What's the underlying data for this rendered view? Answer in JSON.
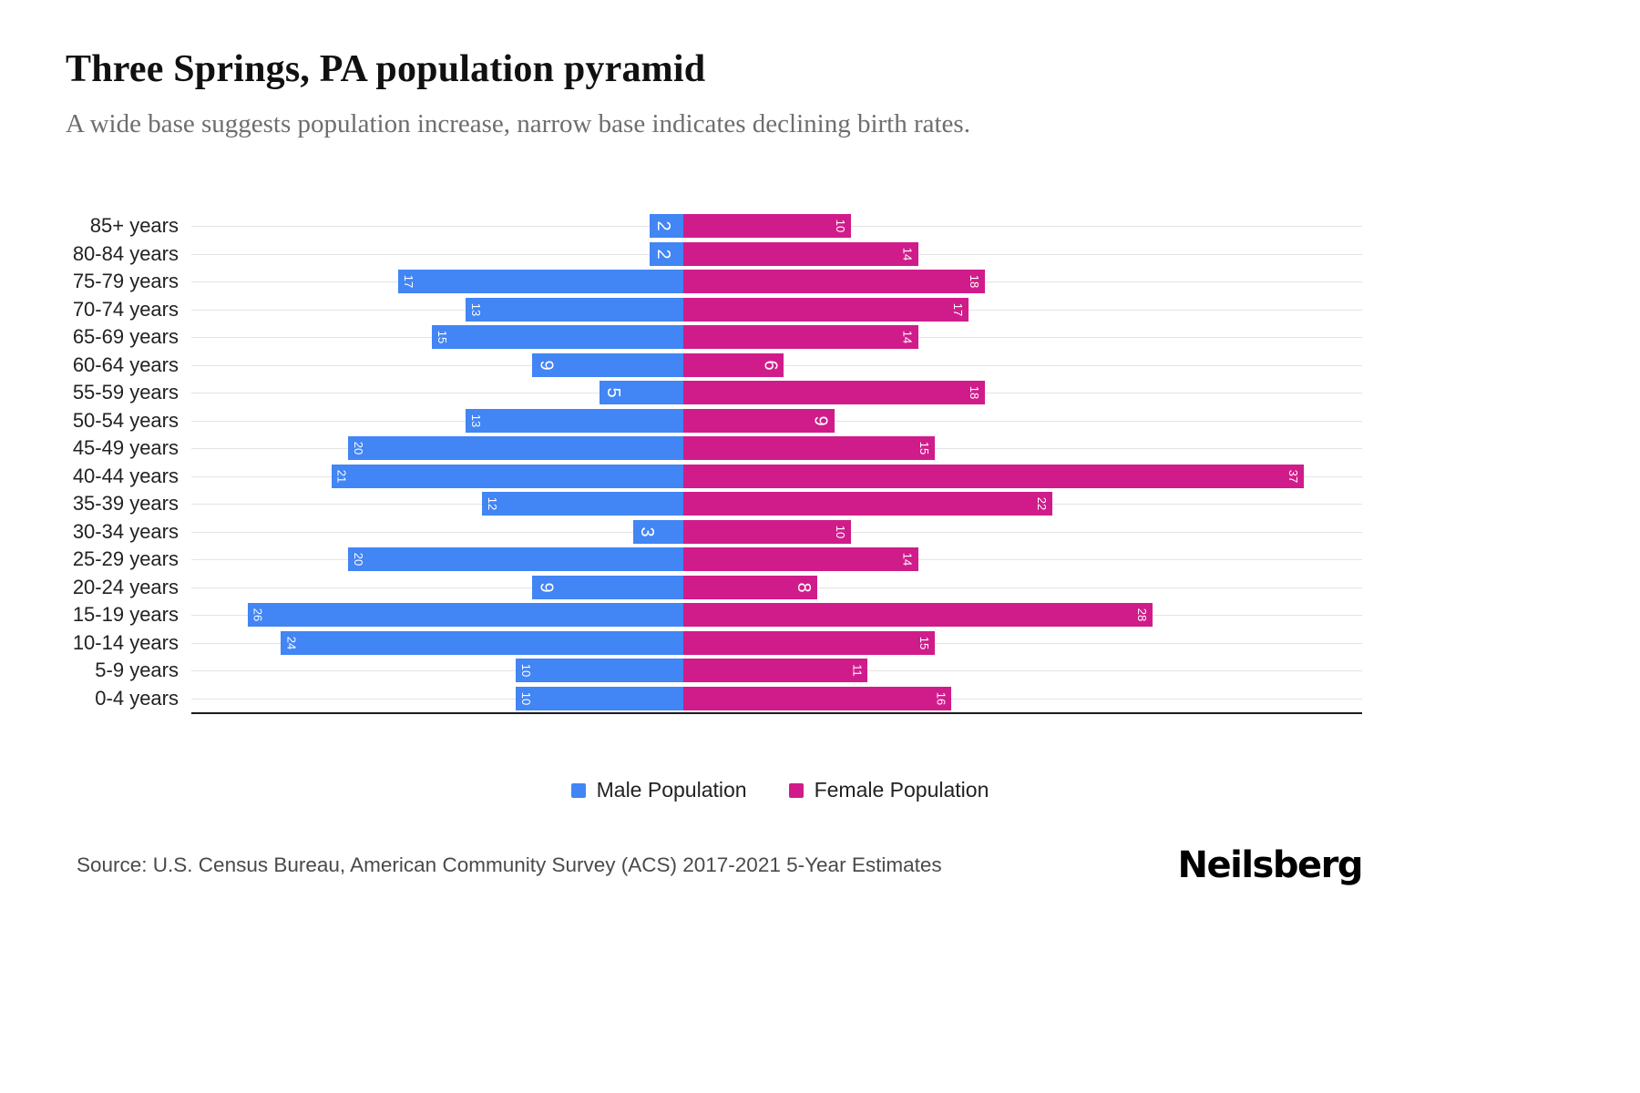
{
  "header": {
    "title": "Three Springs, PA population pyramid",
    "subtitle": "A wide base suggests population increase, narrow base indicates declining birth rates."
  },
  "chart_data": {
    "type": "bar",
    "subtype": "population-pyramid",
    "orientation": "horizontal",
    "grid": true,
    "legend_position": "bottom",
    "value_label_color": "#ffffff",
    "categories": [
      "85+ years",
      "80-84 years",
      "75-79 years",
      "70-74 years",
      "65-69 years",
      "60-64 years",
      "55-59 years",
      "50-54 years",
      "45-49 years",
      "40-44 years",
      "35-39 years",
      "30-34 years",
      "25-29 years",
      "20-24 years",
      "15-19 years",
      "10-14 years",
      "5-9 years",
      "0-4 years"
    ],
    "series": [
      {
        "name": "Male Population",
        "color": "#4285f4",
        "direction": "left",
        "values": [
          2,
          2,
          17,
          13,
          15,
          9,
          5,
          13,
          20,
          21,
          12,
          3,
          20,
          9,
          26,
          24,
          10,
          10
        ]
      },
      {
        "name": "Female Population",
        "color": "#d01c8b",
        "direction": "right",
        "values": [
          10,
          14,
          18,
          17,
          14,
          6,
          18,
          9,
          15,
          37,
          22,
          10,
          14,
          8,
          28,
          15,
          11,
          16
        ]
      }
    ]
  },
  "footer": {
    "source": "Source: U.S. Census Bureau, American Community Survey (ACS) 2017-2021 5-Year Estimates",
    "brand": "Neilsberg"
  }
}
